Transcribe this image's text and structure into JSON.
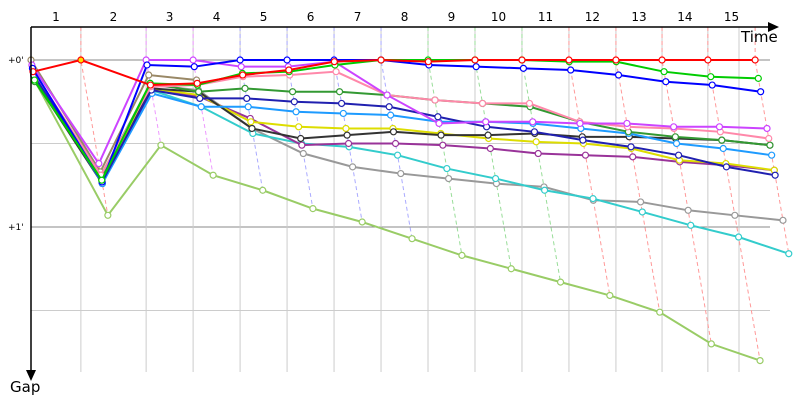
{
  "chart_data": {
    "type": "line",
    "title": "",
    "xlabel": "Time",
    "ylabel": "Gap",
    "x_tick_labels": [
      "1",
      "2",
      "3",
      "4",
      "5",
      "6",
      "7",
      "8",
      "9",
      "10",
      "11",
      "12",
      "13",
      "14",
      "15"
    ],
    "y_tick_labels": [
      "+0'",
      "+1'"
    ],
    "y_unit": "minutes",
    "ylim": [
      0,
      1.9
    ],
    "y_inverted": true,
    "grid": true,
    "leader_lap_times": [
      0,
      1.72,
      3.97,
      5.59,
      7.21,
      8.83,
      10.45,
      12.07,
      13.69,
      15.31,
      16.93,
      18.55,
      20.17,
      21.76,
      23.34,
      24.97
    ],
    "lap_leader_colors": [
      "#ff9999",
      "#ff9999",
      "#ee99ff",
      "#ee99ff",
      "#aaaaff",
      "#aaaaff",
      "#aaaaff",
      "#aaaaff",
      "#99dd99",
      "#99dd99",
      "#99dd99",
      "#ff9999",
      "#ff9999",
      "#ff9999",
      "#ff9999",
      "#ff9999"
    ],
    "series": [
      {
        "color": "#99cc66",
        "gaps": [
          0.12,
          0.93,
          0.51,
          0.69,
          0.78,
          0.89,
          0.97,
          1.07,
          1.17,
          1.25,
          1.33,
          1.41,
          1.51,
          1.7,
          1.8
        ]
      },
      {
        "color": "#998866",
        "gaps": [
          0.0,
          0.67,
          0.09,
          0.12
        ]
      },
      {
        "color": "#999999",
        "gaps": [
          0.1,
          0.69,
          0.15,
          0.18,
          0.41,
          0.56,
          0.64,
          0.68,
          0.71,
          0.74,
          0.76,
          0.84,
          0.85,
          0.9,
          0.93,
          0.96
        ]
      },
      {
        "color": "#33cccc",
        "gaps": [
          0.09,
          0.71,
          0.18,
          0.28,
          0.44,
          0.5,
          0.52,
          0.57,
          0.65,
          0.71,
          0.78,
          0.83,
          0.91,
          0.99,
          1.06,
          1.16
        ]
      },
      {
        "color": "#993399",
        "gaps": [
          0.11,
          0.73,
          0.18,
          0.22,
          0.35,
          0.51,
          0.5,
          0.5,
          0.51,
          0.53,
          0.56,
          0.57,
          0.58,
          0.61,
          0.63,
          0.66
        ]
      },
      {
        "color": "#dddd00",
        "gaps": [
          0.11,
          0.72,
          0.17,
          0.21,
          0.37,
          0.4,
          0.41,
          0.41,
          0.44,
          0.47,
          0.49,
          0.5,
          0.53,
          0.6,
          0.62,
          0.66
        ]
      },
      {
        "color": "#333333",
        "gaps": [
          0.12,
          0.74,
          0.17,
          0.19,
          0.41,
          0.47,
          0.45,
          0.43,
          0.45,
          0.45,
          0.44,
          0.46,
          0.46,
          0.47,
          0.48,
          0.51
        ]
      },
      {
        "color": "#1e9bff",
        "gaps": [
          0.07,
          0.74,
          0.2,
          0.28,
          0.28,
          0.31,
          0.32,
          0.33,
          0.37,
          0.37,
          0.38,
          0.41,
          0.44,
          0.5,
          0.53,
          0.57
        ]
      },
      {
        "color": "#2020b0",
        "gaps": [
          0.09,
          0.73,
          0.18,
          0.23,
          0.23,
          0.25,
          0.26,
          0.28,
          0.34,
          0.4,
          0.43,
          0.48,
          0.52,
          0.57,
          0.64,
          0.69
        ]
      },
      {
        "color": "#339933",
        "gaps": [
          0.13,
          0.71,
          0.14,
          0.19,
          0.17,
          0.19,
          0.19,
          0.21,
          0.24,
          0.26,
          0.28,
          0.37,
          0.43,
          0.46,
          0.48,
          0.51
        ]
      },
      {
        "color": "#ff88aa",
        "gaps": [
          0.06,
          0.69,
          0.16,
          0.15,
          0.1,
          0.09,
          0.07,
          0.21,
          0.24,
          0.26,
          0.26,
          0.37,
          0.4,
          0.41,
          0.43,
          0.47
        ]
      },
      {
        "color": "#cc44ff",
        "gaps": [
          0.03,
          0.62,
          0.0,
          0.0,
          0.04,
          0.04,
          0.01,
          0.21,
          0.38,
          0.37,
          0.37,
          0.38,
          0.38,
          0.4,
          0.4,
          0.41
        ]
      },
      {
        "color": "#0000ff",
        "gaps": [
          0.05,
          0.73,
          0.03,
          0.04,
          0.0,
          0.0,
          0.0,
          0.0,
          0.03,
          0.04,
          0.05,
          0.06,
          0.09,
          0.13,
          0.15,
          0.19
        ]
      },
      {
        "color": "#00cc00",
        "gaps": [
          0.12,
          0.72,
          0.14,
          0.15,
          0.08,
          0.07,
          0.03,
          0.0,
          0.0,
          0.0,
          0.0,
          0.01,
          0.01,
          0.07,
          0.1,
          0.11
        ]
      },
      {
        "color": "#ff0000",
        "gaps": [
          0.07,
          0.0,
          0.15,
          0.14,
          0.09,
          0.06,
          0.01,
          0.0,
          0.01,
          0.0,
          0.0,
          0.0,
          0.0,
          0.0,
          0.0,
          0.0
        ]
      }
    ]
  }
}
